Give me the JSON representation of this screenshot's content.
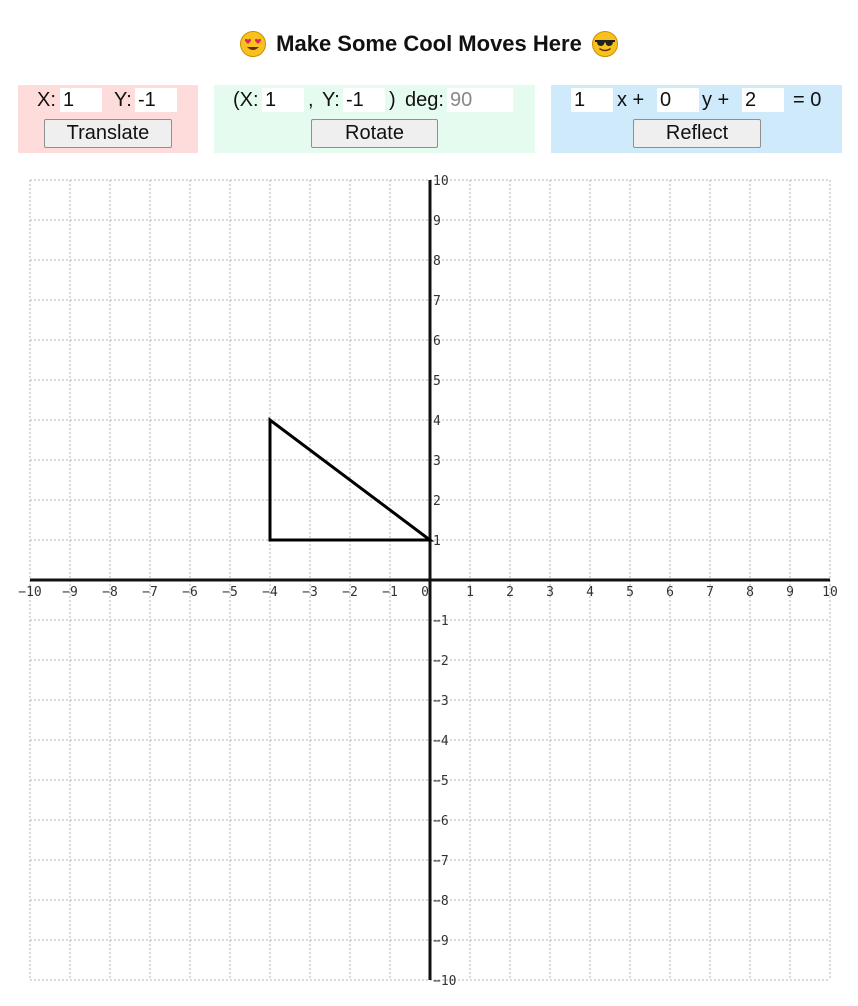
{
  "title": "Make Some Cool Moves Here",
  "translate": {
    "x_label": "X:",
    "x_value": "1",
    "y_label": "Y:",
    "y_value": "-1",
    "button": "Translate"
  },
  "rotate": {
    "open_label": "(X:",
    "x_value": "1",
    "comma_label": ",",
    "y_label": "Y:",
    "y_value": "-1",
    "close_label": ")",
    "deg_label": "deg:",
    "deg_placeholder": "90",
    "button": "Rotate"
  },
  "reflect": {
    "a_value": "1",
    "x_label": "x +",
    "b_value": "0",
    "y_label": "y +",
    "c_value": "2",
    "eq_label": "= 0",
    "button": "Reflect"
  },
  "graph": {
    "x_range": [
      -10,
      10
    ],
    "y_range": [
      -10,
      10
    ],
    "tick_step": 1,
    "grid": "dotted",
    "x_tick_labels": [
      "−10",
      "−9",
      "−8",
      "−7",
      "−6",
      "−5",
      "−4",
      "−3",
      "−2",
      "−1",
      "0",
      "1",
      "2",
      "3",
      "4",
      "5",
      "6",
      "7",
      "8",
      "9",
      "10"
    ],
    "y_tick_labels": [
      "10",
      "9",
      "8",
      "7",
      "6",
      "5",
      "4",
      "3",
      "2",
      "1",
      "−1",
      "−2",
      "−3",
      "−4",
      "−5",
      "−6",
      "−7",
      "−8",
      "−9",
      "−10"
    ],
    "shape": {
      "type": "triangle",
      "vertices": [
        [
          -4,
          4
        ],
        [
          -4,
          1
        ],
        [
          0,
          1
        ]
      ]
    }
  },
  "colors": {
    "translate_panel": "#ffdcdc",
    "rotate_panel": "#e6fbef",
    "reflect_panel": "#cfeafb",
    "grid_line": "#b5b5b5",
    "axis": "#111111",
    "shape_stroke": "#000000"
  },
  "icons": {
    "left_emoji": "heart-eyes-emoji-icon",
    "right_emoji": "sunglasses-emoji-icon"
  }
}
